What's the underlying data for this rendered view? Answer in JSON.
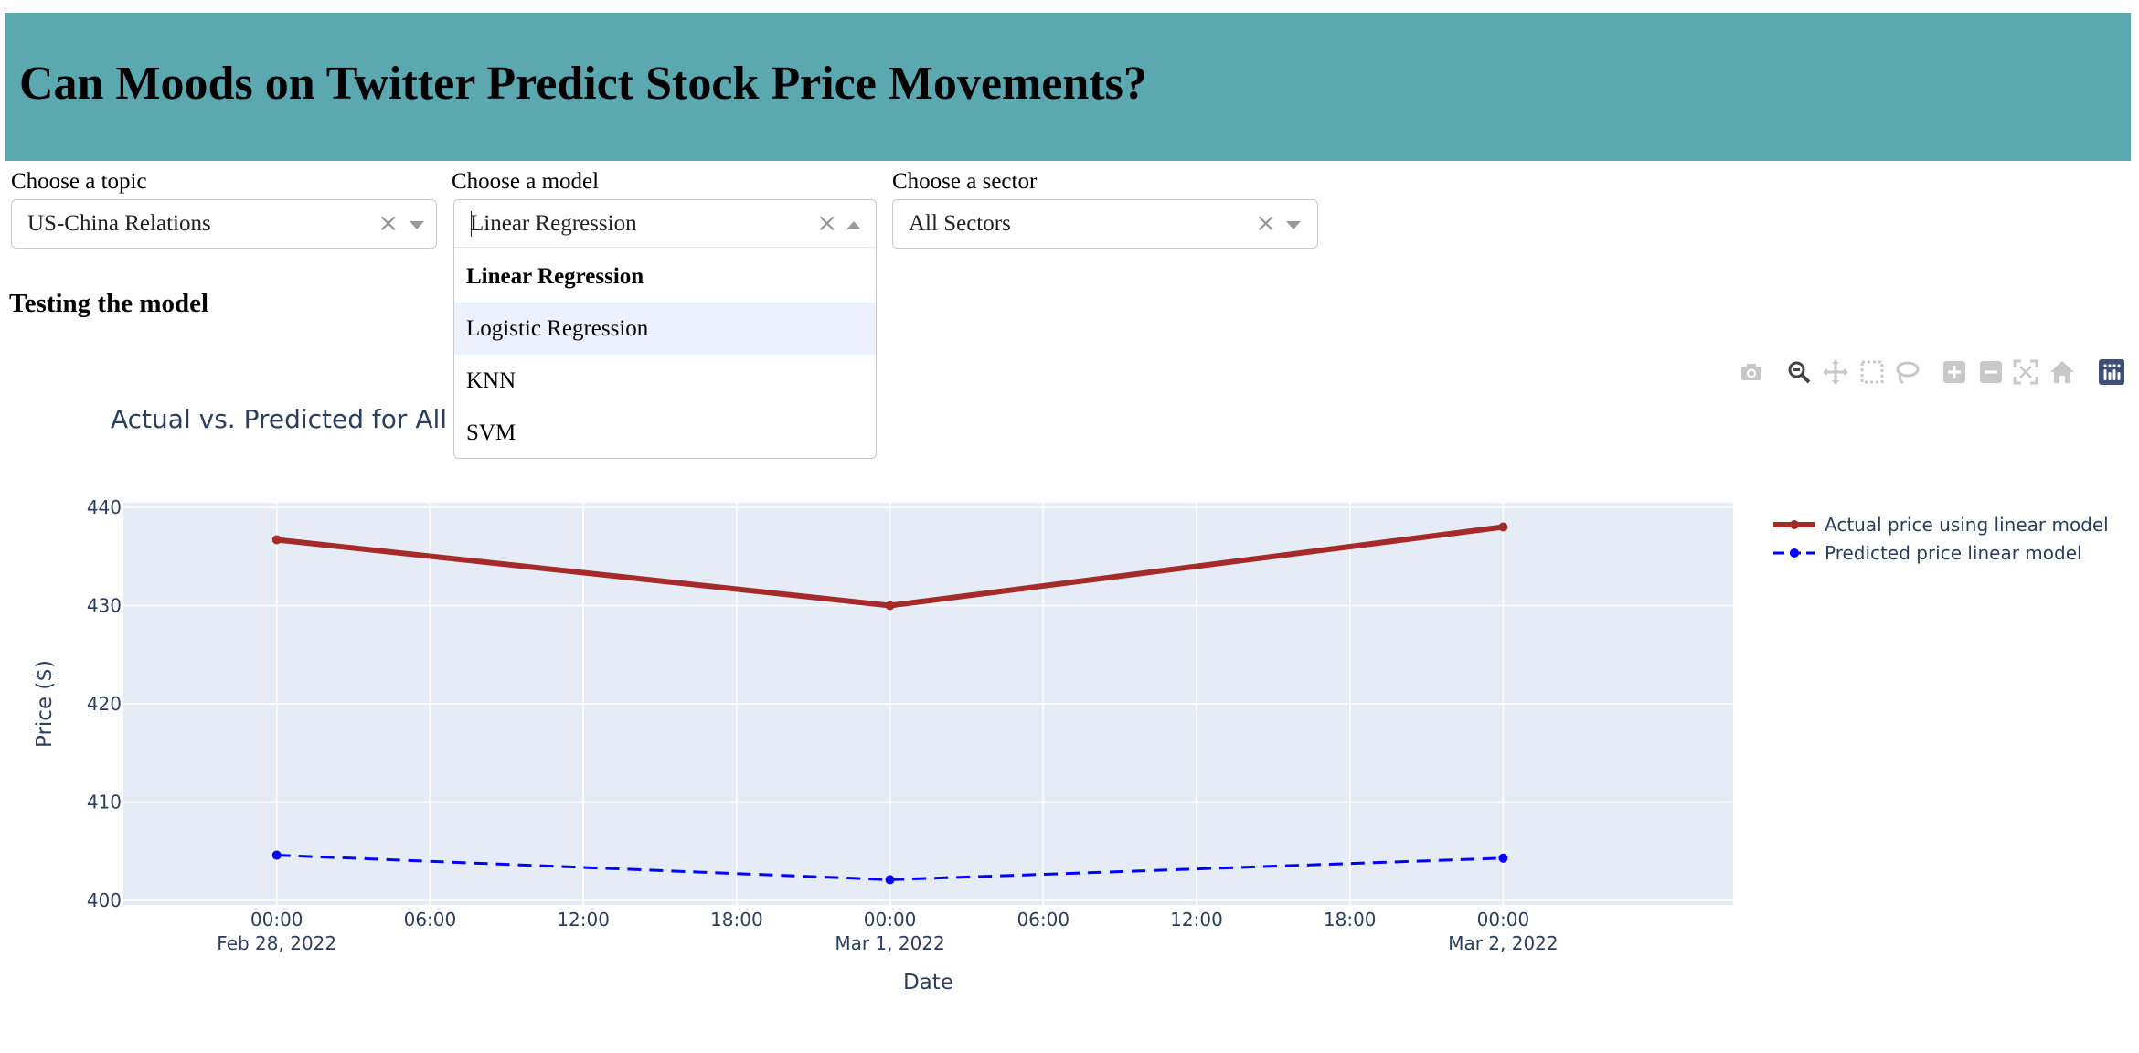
{
  "header": {
    "title": "Can Moods on Twitter Predict Stock Price Movements?"
  },
  "controls": {
    "topic": {
      "label": "Choose a topic",
      "value": "US-China Relations"
    },
    "model": {
      "label": "Choose a model",
      "value": "Linear Regression",
      "options": [
        "Linear Regression",
        "Logistic Regression",
        "KNN",
        "SVM"
      ],
      "selected": "Linear Regression",
      "highlighted": "Logistic Regression"
    },
    "sector": {
      "label": "Choose a sector",
      "value": "All Sectors"
    }
  },
  "section": {
    "title": "Testing the model"
  },
  "modebar": {
    "icons": [
      "camera-icon",
      "zoom-icon",
      "pan-icon",
      "box-select-icon",
      "lasso-icon",
      "zoom-in-icon",
      "zoom-out-icon",
      "autoscale-icon",
      "reset-axes-icon",
      "plotly-logo-icon"
    ]
  },
  "chart_data": {
    "type": "line",
    "title": "Actual vs. Predicted for All",
    "xlabel": "Date",
    "ylabel": "Price ($)",
    "x": [
      "2022-02-28 00:00",
      "2022-03-01 00:00",
      "2022-03-02 00:00"
    ],
    "x_ticks": [
      {
        "label": "00:00",
        "sub": "Feb 28, 2022"
      },
      {
        "label": "06:00",
        "sub": ""
      },
      {
        "label": "12:00",
        "sub": ""
      },
      {
        "label": "18:00",
        "sub": ""
      },
      {
        "label": "00:00",
        "sub": "Mar 1, 2022"
      },
      {
        "label": "06:00",
        "sub": ""
      },
      {
        "label": "12:00",
        "sub": ""
      },
      {
        "label": "18:00",
        "sub": ""
      },
      {
        "label": "00:00",
        "sub": "Mar 2, 2022"
      }
    ],
    "y_ticks": [
      400,
      410,
      420,
      430,
      440
    ],
    "ylim": [
      400,
      440
    ],
    "xlim": [
      "2022-02-27 18:00",
      "2022-03-02 09:00"
    ],
    "grid": true,
    "legend_position": "top-right",
    "series": [
      {
        "name": "Actual price using linear model",
        "values": [
          436.7,
          430.0,
          438.0
        ],
        "color": "#a52a2a",
        "dash": "solid"
      },
      {
        "name": "Predicted price linear model",
        "values": [
          404.6,
          402.1,
          404.3
        ],
        "color": "#0000ff",
        "dash": "dash"
      }
    ]
  }
}
